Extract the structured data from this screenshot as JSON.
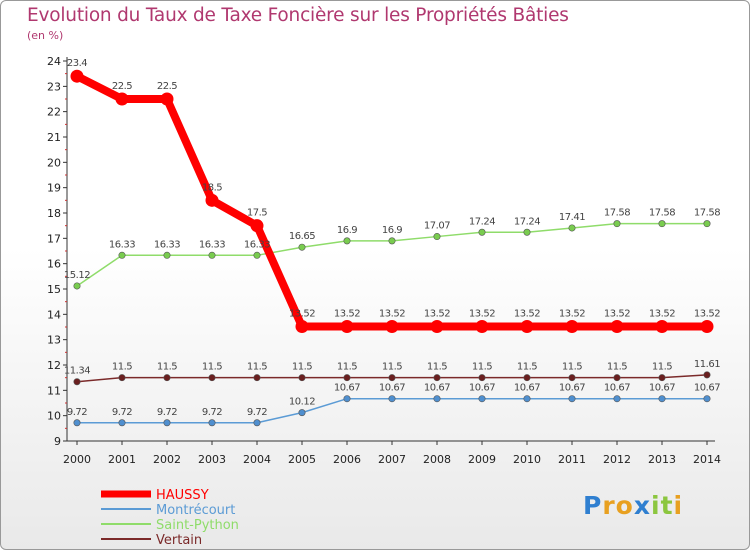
{
  "chart_data": {
    "type": "line",
    "title": "Evolution du Taux de Taxe Foncière sur les Propriétés Bâties",
    "ylabel": "(en %)",
    "xlabel": "",
    "x": [
      "2000",
      "2001",
      "2002",
      "2003",
      "2004",
      "2005",
      "2006",
      "2007",
      "2008",
      "2009",
      "2010",
      "2011",
      "2012",
      "2013",
      "2014"
    ],
    "ylim": [
      9,
      24
    ],
    "yticks": [
      9,
      10,
      11,
      12,
      13,
      14,
      15,
      16,
      17,
      18,
      19,
      20,
      21,
      22,
      23,
      24
    ],
    "series": [
      {
        "name": "HAUSSY",
        "color": "#ff0000",
        "marker": "#ff0000",
        "values": [
          23.4,
          22.5,
          22.5,
          18.5,
          17.5,
          13.52,
          13.52,
          13.52,
          13.52,
          13.52,
          13.52,
          13.52,
          13.52,
          13.52,
          13.52
        ],
        "labels": [
          "23.4",
          "22.5",
          "22.5",
          "18.5",
          "17.5",
          "13.52",
          "13.52",
          "13.52",
          "13.52",
          "13.52",
          "13.52",
          "13.52",
          "13.52",
          "13.52",
          "13.52"
        ]
      },
      {
        "name": "Montrécourt",
        "color": "#5b9bd5",
        "marker": "#4f8fcf",
        "values": [
          9.72,
          9.72,
          9.72,
          9.72,
          9.72,
          10.12,
          10.67,
          10.67,
          10.67,
          10.67,
          10.67,
          10.67,
          10.67,
          10.67,
          10.67
        ],
        "labels": [
          "9.72",
          "9.72",
          "9.72",
          "9.72",
          "9.72",
          "10.12",
          "10.67",
          "10.67",
          "10.67",
          "10.67",
          "10.67",
          "10.67",
          "10.67",
          "10.67",
          "10.67"
        ]
      },
      {
        "name": "Saint-Python",
        "color": "#8fdc6a",
        "marker": "#79cc4f",
        "values": [
          15.12,
          16.33,
          16.33,
          16.33,
          16.33,
          16.65,
          16.9,
          16.9,
          17.07,
          17.24,
          17.24,
          17.41,
          17.58,
          17.58,
          17.58
        ],
        "labels": [
          "15.12",
          "16.33",
          "16.33",
          "16.33",
          "16.33",
          "16.65",
          "16.9",
          "16.9",
          "17.07",
          "17.24",
          "17.24",
          "17.41",
          "17.58",
          "17.58",
          "17.58"
        ]
      },
      {
        "name": "Vertain",
        "color": "#7b2a2a",
        "marker": "#6a1f1f",
        "values": [
          11.34,
          11.5,
          11.5,
          11.5,
          11.5,
          11.5,
          11.5,
          11.5,
          11.5,
          11.5,
          11.5,
          11.5,
          11.5,
          11.5,
          11.61
        ],
        "labels": [
          "11.34",
          "11.5",
          "11.5",
          "11.5",
          "11.5",
          "11.5",
          "11.5",
          "11.5",
          "11.5",
          "11.5",
          "11.5",
          "11.5",
          "11.5",
          "11.5",
          "11.61"
        ]
      }
    ],
    "legend": [
      "HAUSSY",
      "Montrécourt",
      "Saint-Python",
      "Vertain"
    ],
    "legend_position": "bottom-left",
    "grid": false
  },
  "logo": {
    "letters": [
      "P",
      "r",
      "o",
      "x",
      "i",
      "t",
      "i"
    ],
    "colors": [
      "#2f7fd0",
      "#e8a020",
      "#e8a020",
      "#2f7fd0",
      "#8cc63f",
      "#8cc63f",
      "#e8a020"
    ]
  }
}
